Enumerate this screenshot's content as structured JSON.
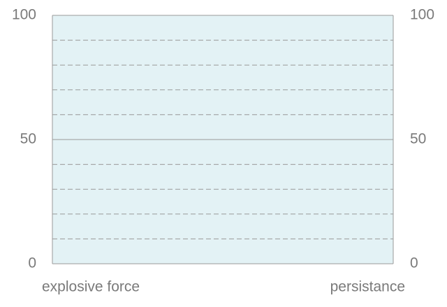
{
  "chart_data": {
    "type": "slope",
    "categories": [
      "explosive force",
      "persistance"
    ],
    "series": [],
    "ylim": [
      0,
      100
    ],
    "yticks": [
      0,
      50,
      100
    ],
    "y2lim": [
      0,
      100
    ],
    "y2ticks": [
      0,
      50,
      100
    ],
    "minor_yticks": [
      10,
      20,
      30,
      40,
      60,
      70,
      80,
      90
    ],
    "grid": true,
    "background": "#e3f2f5"
  }
}
